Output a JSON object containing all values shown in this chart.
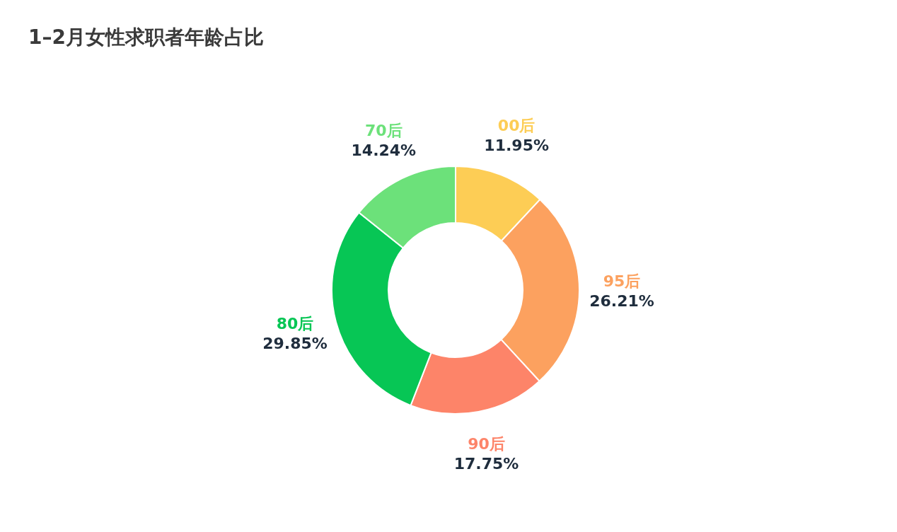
{
  "chart_data": {
    "type": "donut",
    "title": "1–2月女性求职者年龄占比",
    "categories": [
      "00后",
      "95后",
      "90后",
      "80后",
      "70后"
    ],
    "values": [
      11.95,
      26.21,
      17.75,
      29.85,
      14.24
    ],
    "value_labels": [
      "11.95%",
      "26.21%",
      "17.75%",
      "29.85%",
      "14.24%"
    ],
    "colors": [
      "#fdcd55",
      "#fca15f",
      "#fd8469",
      "#07c655",
      "#6ce17a"
    ]
  }
}
